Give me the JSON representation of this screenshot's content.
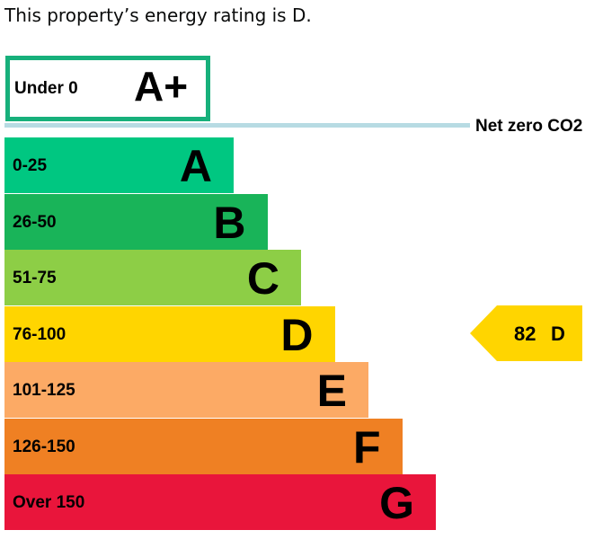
{
  "intro_text": "This property’s energy rating is D.",
  "chart_data": {
    "type": "bar",
    "net_zero_label": "Net zero CO2",
    "top_band": {
      "range": "Under 0",
      "letter": "A+",
      "color": "#17b07b"
    },
    "bands": [
      {
        "range": "0-25",
        "letter": "A",
        "color": "#00c781"
      },
      {
        "range": "26-50",
        "letter": "B",
        "color": "#19b459"
      },
      {
        "range": "51-75",
        "letter": "C",
        "color": "#8dce46"
      },
      {
        "range": "76-100",
        "letter": "D",
        "color": "#ffd500"
      },
      {
        "range": "101-125",
        "letter": "E",
        "color": "#fcaa65"
      },
      {
        "range": "126-150",
        "letter": "F",
        "color": "#ef8023"
      },
      {
        "range": "Over 150",
        "letter": "G",
        "color": "#e9153b"
      }
    ],
    "current": {
      "score": 82,
      "score_text": "82",
      "rating": "D",
      "color": "#ffd500"
    }
  }
}
